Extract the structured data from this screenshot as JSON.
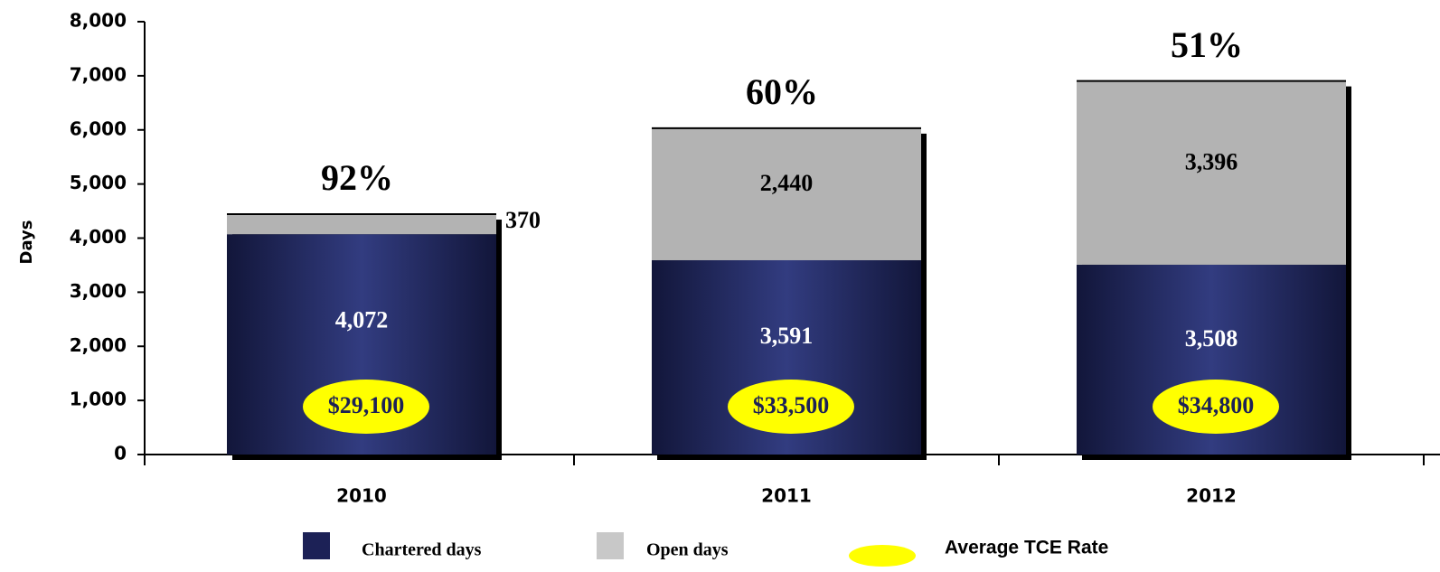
{
  "chart_data": {
    "type": "stacked_bar",
    "y_label": "Days",
    "categories": [
      "2010",
      "2011",
      "2012"
    ],
    "series": [
      {
        "name": "Chartered days",
        "color": "#1c2156",
        "values": [
          4072,
          3591,
          3508
        ],
        "value_labels": [
          "4,072",
          "3,591",
          "3,508"
        ]
      },
      {
        "name": "Open days",
        "color": "#b3b3b3",
        "values": [
          370,
          2440,
          3396
        ],
        "value_labels": [
          "370",
          "2,440",
          "3,396"
        ]
      }
    ],
    "share_labels": [
      "92%",
      "60%",
      "51%"
    ],
    "tce": {
      "name": "Average TCE Rate",
      "color": "#ffff00",
      "labels": [
        "$29,100",
        "$33,500",
        "$34,800"
      ]
    },
    "ylim": [
      0,
      8000
    ],
    "yticks": [
      0,
      {
        "value": 1000,
        "label": "1,000"
      },
      {
        "value": 2000,
        "label": "2,000"
      },
      {
        "value": 3000,
        "label": "3,000"
      },
      {
        "value": 4000,
        "label": "4,000"
      },
      {
        "value": 5000,
        "label": "5,000"
      },
      {
        "value": 6000,
        "label": "6,000"
      },
      {
        "value": 7000,
        "label": "7,000"
      },
      {
        "value": 8000,
        "label": "8,000"
      }
    ]
  }
}
